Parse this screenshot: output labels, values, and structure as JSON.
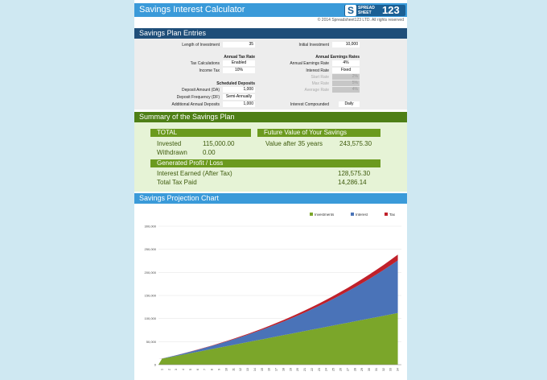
{
  "title": "Savings Interest Calculator",
  "logo": {
    "mark": "S",
    "word1": "SPREAD",
    "word2": "SHEET",
    "num": "123"
  },
  "copyright": "© 2014 Spreadsheet123 LTD. All rights reserved",
  "entries": {
    "header": "Savings Plan Entries",
    "length_label": "Length of Investment",
    "length_value": "35",
    "initial_label": "Initial Investment",
    "initial_value": "10,000",
    "tax_rates_heading": "Annual Tax Rate",
    "tax_calc_label": "Tax Calculations",
    "tax_calc_value": "Enabled",
    "income_tax_label": "Income Tax",
    "income_tax_value": "10%",
    "earn_heading": "Annual Earnings Rates",
    "earn_rate_label": "Annual Earnings Rate",
    "earn_rate_value": "4%",
    "interest_rate_label": "Interest Rate",
    "interest_rate_value": "Fixed",
    "start_rate_label": "Start Rate",
    "start_rate_value": "2%",
    "max_rate_label": "Max Rate",
    "max_rate_value": "5%",
    "avg_rate_label": "Average Rate",
    "avg_rate_value": "4%",
    "deposits_heading": "Scheduled Deposits",
    "deposit_amount_label": "Deposit Amount (DA)",
    "deposit_amount_value": "1,000",
    "deposit_freq_label": "Deposit Frequency (DF)",
    "deposit_freq_value": "Semi-Annually",
    "additional_label": "Additional Annual Deposits",
    "additional_value": "1,000",
    "compound_label": "Interest Compounded",
    "compound_value": "Daily"
  },
  "summary": {
    "header": "Summary of the Savings Plan",
    "total_heading": "TOTAL",
    "invested_label": "Invested",
    "invested_value": "115,000.00",
    "withdrawn_label": "Withdrawn",
    "withdrawn_value": "0.00",
    "fv_heading": "Future Value of Your Savings",
    "value_after_label": "Value after 35 years",
    "value_after_value": "243,575.30",
    "profit_heading": "Generated Profit / Loss",
    "interest_label": "Interest Earned (After Tax)",
    "interest_value": "128,575.30",
    "tax_label": "Total Tax Paid",
    "tax_value": "14,286.14"
  },
  "chart_header": "Savings Projection Chart",
  "chart_data": {
    "type": "area",
    "stacked": true,
    "x": [
      1,
      2,
      3,
      4,
      5,
      6,
      7,
      8,
      9,
      10,
      11,
      12,
      13,
      14,
      15,
      16,
      17,
      18,
      19,
      20,
      21,
      22,
      23,
      24,
      25,
      26,
      27,
      28,
      29,
      30,
      31,
      32,
      33,
      34
    ],
    "ylim": [
      0,
      300000
    ],
    "yticks": [
      "0",
      "50,000",
      "100,000",
      "150,000",
      "200,000",
      "250,000",
      "300,000"
    ],
    "legend_position": "top-right",
    "colors": {
      "Investments": "#7ba62a",
      "Interest": "#4a73b8",
      "Tax": "#c0202a"
    },
    "series": [
      {
        "name": "Investments",
        "values": [
          13000,
          16000,
          19000,
          22000,
          25000,
          28000,
          31000,
          34000,
          37000,
          40000,
          43000,
          46000,
          49000,
          52000,
          55000,
          58000,
          61000,
          64000,
          67000,
          70000,
          73000,
          76000,
          79000,
          82000,
          85000,
          88000,
          91000,
          94000,
          97000,
          100000,
          103000,
          106000,
          109000,
          112000
        ]
      },
      {
        "name": "Interest",
        "values": [
          400,
          940,
          1600,
          2390,
          3310,
          4370,
          5570,
          6910,
          8400,
          10050,
          11860,
          13840,
          15990,
          18320,
          20840,
          23550,
          26460,
          29580,
          32910,
          36460,
          40230,
          44240,
          48490,
          52990,
          57750,
          62780,
          68100,
          73700,
          79600,
          85800,
          92300,
          99100,
          106300,
          113800
        ]
      },
      {
        "name": "Tax",
        "values": [
          45,
          105,
          180,
          265,
          370,
          485,
          620,
          770,
          935,
          1115,
          1320,
          1540,
          1775,
          2035,
          2315,
          2615,
          2940,
          3285,
          3655,
          4050,
          4470,
          4915,
          5390,
          5890,
          6420,
          6975,
          7565,
          8190,
          8845,
          9535,
          10255,
          11015,
          11810,
          12645
        ]
      }
    ]
  }
}
